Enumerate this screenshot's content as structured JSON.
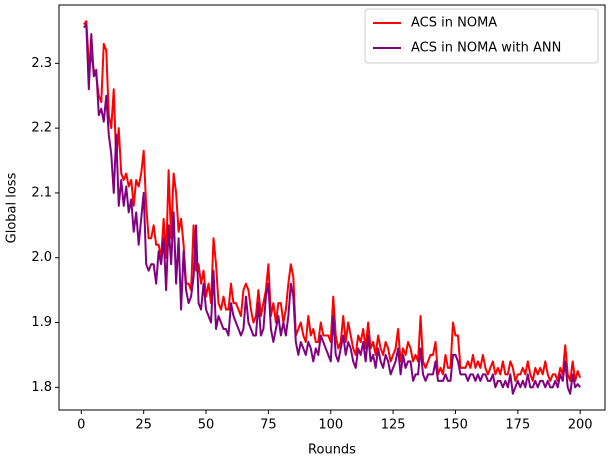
{
  "chart_data": {
    "type": "line",
    "xlabel": "Rounds",
    "ylabel": "Global loss",
    "x": [
      1,
      2,
      3,
      4,
      5,
      6,
      7,
      8,
      9,
      10,
      11,
      12,
      13,
      14,
      15,
      16,
      17,
      18,
      19,
      20,
      21,
      22,
      23,
      24,
      25,
      26,
      27,
      28,
      29,
      30,
      31,
      32,
      33,
      34,
      35,
      36,
      37,
      38,
      39,
      40,
      41,
      42,
      43,
      44,
      45,
      46,
      47,
      48,
      49,
      50,
      51,
      52,
      53,
      54,
      55,
      56,
      57,
      58,
      59,
      60,
      61,
      62,
      63,
      64,
      65,
      66,
      67,
      68,
      69,
      70,
      71,
      72,
      73,
      74,
      75,
      76,
      77,
      78,
      79,
      80,
      81,
      82,
      83,
      84,
      85,
      86,
      87,
      88,
      89,
      90,
      91,
      92,
      93,
      94,
      95,
      96,
      97,
      98,
      99,
      100,
      101,
      102,
      103,
      104,
      105,
      106,
      107,
      108,
      109,
      110,
      111,
      112,
      113,
      114,
      115,
      116,
      117,
      118,
      119,
      120,
      121,
      122,
      123,
      124,
      125,
      126,
      127,
      128,
      129,
      130,
      131,
      132,
      133,
      134,
      135,
      136,
      137,
      138,
      139,
      140,
      141,
      142,
      143,
      144,
      145,
      146,
      147,
      148,
      149,
      150,
      151,
      152,
      153,
      154,
      155,
      156,
      157,
      158,
      159,
      160,
      161,
      162,
      163,
      164,
      165,
      166,
      167,
      168,
      169,
      170,
      171,
      172,
      173,
      174,
      175,
      176,
      177,
      178,
      179,
      180,
      181,
      182,
      183,
      184,
      185,
      186,
      187,
      188,
      189,
      190,
      191,
      192,
      193,
      194,
      195,
      196,
      197,
      198,
      199,
      200
    ],
    "series": [
      {
        "name": "ACS in NOMA",
        "color": "#ff0000",
        "values": [
          2.36,
          2.365,
          2.3,
          2.31,
          2.29,
          2.28,
          2.25,
          2.24,
          2.33,
          2.32,
          2.22,
          2.2,
          2.26,
          2.15,
          2.2,
          2.13,
          2.12,
          2.13,
          2.11,
          2.12,
          2.08,
          2.12,
          2.11,
          2.13,
          2.165,
          2.08,
          2.03,
          2.03,
          2.05,
          2.02,
          2.02,
          2.0,
          2.06,
          2.0,
          2.135,
          2.03,
          2.13,
          2.1,
          2.04,
          2.06,
          2.02,
          1.96,
          1.96,
          1.95,
          2.05,
          1.98,
          1.99,
          1.96,
          1.98,
          1.94,
          1.96,
          1.93,
          2.03,
          1.99,
          1.93,
          1.92,
          1.94,
          1.92,
          1.92,
          1.96,
          1.93,
          1.93,
          1.92,
          1.91,
          1.95,
          1.96,
          1.95,
          1.92,
          1.9,
          1.91,
          1.95,
          1.91,
          1.93,
          1.95,
          1.99,
          1.91,
          1.93,
          1.9,
          1.93,
          1.93,
          1.9,
          1.92,
          1.96,
          1.99,
          1.97,
          1.88,
          1.89,
          1.9,
          1.88,
          1.87,
          1.91,
          1.88,
          1.89,
          1.87,
          1.87,
          1.9,
          1.88,
          1.88,
          1.88,
          1.87,
          1.94,
          1.88,
          1.86,
          1.87,
          1.91,
          1.87,
          1.9,
          1.88,
          1.86,
          1.85,
          1.88,
          1.87,
          1.89,
          1.86,
          1.9,
          1.86,
          1.87,
          1.85,
          1.88,
          1.86,
          1.85,
          1.87,
          1.86,
          1.84,
          1.85,
          1.86,
          1.89,
          1.84,
          1.86,
          1.85,
          1.87,
          1.86,
          1.84,
          1.85,
          1.84,
          1.91,
          1.84,
          1.83,
          1.84,
          1.85,
          1.85,
          1.87,
          1.82,
          1.83,
          1.82,
          1.85,
          1.83,
          1.83,
          1.9,
          1.88,
          1.88,
          1.83,
          1.83,
          1.83,
          1.84,
          1.83,
          1.85,
          1.83,
          1.84,
          1.83,
          1.85,
          1.83,
          1.82,
          1.83,
          1.84,
          1.82,
          1.83,
          1.82,
          1.84,
          1.82,
          1.82,
          1.84,
          1.83,
          1.81,
          1.82,
          1.82,
          1.83,
          1.82,
          1.84,
          1.82,
          1.81,
          1.83,
          1.82,
          1.83,
          1.82,
          1.84,
          1.82,
          1.81,
          1.82,
          1.82,
          1.81,
          1.83,
          1.82,
          1.865,
          1.82,
          1.81,
          1.84,
          1.81,
          1.825,
          1.815
        ]
      },
      {
        "name": "ACS in NOMA with ANN",
        "color": "#800080",
        "values": [
          2.355,
          2.36,
          2.26,
          2.345,
          2.28,
          2.29,
          2.22,
          2.23,
          2.21,
          2.25,
          2.19,
          2.16,
          2.1,
          2.19,
          2.08,
          2.12,
          2.08,
          2.11,
          2.07,
          2.09,
          2.04,
          2.07,
          2.02,
          2.06,
          2.1,
          1.99,
          1.98,
          1.99,
          1.99,
          1.96,
          2.01,
          1.99,
          2.03,
          1.95,
          2.05,
          1.99,
          2.07,
          1.96,
          2.03,
          1.92,
          2.01,
          1.95,
          1.93,
          1.94,
          1.97,
          2.05,
          1.93,
          1.92,
          1.96,
          1.92,
          1.91,
          1.9,
          1.98,
          1.89,
          1.91,
          1.9,
          1.89,
          1.89,
          1.88,
          1.93,
          1.91,
          1.9,
          1.89,
          1.88,
          1.89,
          1.94,
          1.9,
          1.89,
          1.88,
          1.88,
          1.93,
          1.88,
          1.89,
          1.94,
          1.96,
          1.89,
          1.87,
          1.89,
          1.91,
          1.88,
          1.9,
          1.88,
          1.91,
          1.96,
          1.94,
          1.87,
          1.85,
          1.87,
          1.86,
          1.85,
          1.87,
          1.86,
          1.84,
          1.86,
          1.85,
          1.88,
          1.87,
          1.86,
          1.85,
          1.84,
          1.91,
          1.85,
          1.84,
          1.86,
          1.88,
          1.85,
          1.87,
          1.86,
          1.84,
          1.83,
          1.86,
          1.85,
          1.87,
          1.84,
          1.88,
          1.84,
          1.85,
          1.83,
          1.86,
          1.84,
          1.83,
          1.85,
          1.84,
          1.82,
          1.83,
          1.84,
          1.86,
          1.82,
          1.85,
          1.83,
          1.84,
          1.84,
          1.81,
          1.82,
          1.82,
          1.86,
          1.82,
          1.81,
          1.82,
          1.82,
          1.82,
          1.84,
          1.81,
          1.81,
          1.81,
          1.82,
          1.81,
          1.81,
          1.85,
          1.85,
          1.84,
          1.82,
          1.82,
          1.82,
          1.81,
          1.82,
          1.82,
          1.81,
          1.82,
          1.81,
          1.82,
          1.82,
          1.81,
          1.81,
          1.82,
          1.8,
          1.81,
          1.81,
          1.8,
          1.81,
          1.8,
          1.82,
          1.79,
          1.8,
          1.81,
          1.8,
          1.81,
          1.8,
          1.82,
          1.8,
          1.8,
          1.81,
          1.8,
          1.81,
          1.81,
          1.8,
          1.81,
          1.8,
          1.8,
          1.81,
          1.8,
          1.82,
          1.81,
          1.84,
          1.8,
          1.79,
          1.82,
          1.8,
          1.805,
          1.8
        ]
      }
    ],
    "xlim": [
      -8.95,
      209.95
    ],
    "xticks": [
      0,
      25,
      50,
      75,
      100,
      125,
      150,
      175,
      200
    ],
    "ylim": [
      1.765,
      2.39
    ],
    "yticks": [
      1.8,
      1.9,
      {
        "value": 2,
        "label": "2.0"
      },
      2.1,
      2.2,
      2.3
    ],
    "grid": false,
    "legend": "upper right"
  }
}
